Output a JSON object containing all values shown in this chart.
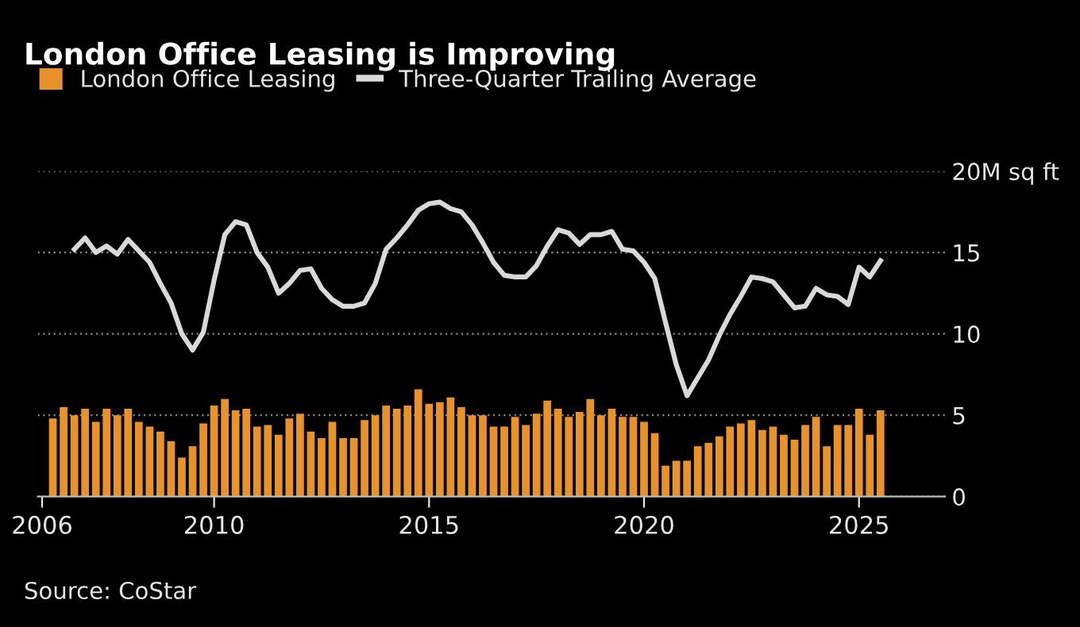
{
  "chart_data": {
    "type": "bar",
    "title": "London Office Leasing is Improving",
    "x": [
      2006.25,
      2006.5,
      2006.75,
      2007,
      2007.25,
      2007.5,
      2007.75,
      2008,
      2008.25,
      2008.5,
      2008.75,
      2009,
      2009.25,
      2009.5,
      2009.75,
      2010,
      2010.25,
      2010.5,
      2010.75,
      2011,
      2011.25,
      2011.5,
      2011.75,
      2012,
      2012.25,
      2012.5,
      2012.75,
      2013,
      2013.25,
      2013.5,
      2013.75,
      2014,
      2014.25,
      2014.5,
      2014.75,
      2015,
      2015.25,
      2015.5,
      2015.75,
      2016,
      2016.25,
      2016.5,
      2016.75,
      2017,
      2017.25,
      2017.5,
      2017.75,
      2018,
      2018.25,
      2018.5,
      2018.75,
      2019,
      2019.25,
      2019.5,
      2019.75,
      2020,
      2020.25,
      2020.5,
      2020.75,
      2021,
      2021.25,
      2021.5,
      2021.75,
      2022,
      2022.25,
      2022.5,
      2022.75,
      2023,
      2023.25,
      2023.5,
      2023.75,
      2024,
      2024.25,
      2024.5,
      2024.75,
      2025,
      2025.25,
      2025.5
    ],
    "series": [
      {
        "name": "London Office Leasing",
        "color": "#e8922a",
        "values": [
          4.8,
          5.5,
          5.0,
          5.4,
          4.6,
          5.4,
          5.0,
          5.4,
          4.6,
          4.3,
          4.0,
          3.4,
          2.4,
          3.1,
          4.5,
          5.6,
          6.0,
          5.3,
          5.4,
          4.3,
          4.4,
          3.8,
          4.8,
          5.1,
          4.0,
          3.6,
          4.6,
          3.6,
          3.6,
          4.7,
          5.0,
          5.6,
          5.4,
          5.6,
          6.6,
          5.7,
          5.8,
          6.1,
          5.5,
          5.0,
          5.0,
          4.3,
          4.3,
          4.9,
          4.4,
          5.1,
          5.9,
          5.4,
          4.9,
          5.2,
          6.0,
          5.0,
          5.4,
          4.9,
          4.9,
          4.6,
          3.9,
          1.9,
          2.2,
          2.2,
          3.1,
          3.3,
          3.7,
          4.3,
          4.5,
          4.7,
          4.1,
          4.3,
          3.8,
          3.5,
          4.4,
          4.9,
          3.1,
          4.4,
          4.4,
          5.4,
          3.8,
          5.3
        ]
      },
      {
        "name": "Three-Quarter Trailing Average",
        "type": "line",
        "color": "#d9d9d9",
        "x": [
          2006.75,
          2007,
          2007.25,
          2007.5,
          2007.75,
          2008,
          2008.25,
          2008.5,
          2008.75,
          2009,
          2009.25,
          2009.5,
          2009.75,
          2010,
          2010.25,
          2010.5,
          2010.75,
          2011,
          2011.25,
          2011.5,
          2011.75,
          2012,
          2012.25,
          2012.5,
          2012.75,
          2013,
          2013.25,
          2013.5,
          2013.75,
          2014,
          2014.25,
          2014.5,
          2014.75,
          2015,
          2015.25,
          2015.5,
          2015.75,
          2016,
          2016.25,
          2016.5,
          2016.75,
          2017,
          2017.25,
          2017.5,
          2017.75,
          2018,
          2018.25,
          2018.5,
          2018.75,
          2019,
          2019.25,
          2019.5,
          2019.75,
          2020,
          2020.25,
          2020.5,
          2020.75,
          2021,
          2021.25,
          2021.5,
          2021.75,
          2022,
          2022.25,
          2022.5,
          2022.75,
          2023,
          2023.25,
          2023.5,
          2023.75,
          2024,
          2024.25,
          2024.5,
          2024.75,
          2025,
          2025.25,
          2025.5
        ],
        "values": [
          15.2,
          15.9,
          15.0,
          15.4,
          14.9,
          15.8,
          15.1,
          14.4,
          13.1,
          11.9,
          10.0,
          9.0,
          10.1,
          13.3,
          16.1,
          16.9,
          16.7,
          15.0,
          14.1,
          12.5,
          13.1,
          13.9,
          14.0,
          12.8,
          12.1,
          11.7,
          11.7,
          11.9,
          13.1,
          15.2,
          15.9,
          16.7,
          17.6,
          18.0,
          18.1,
          17.7,
          17.5,
          16.7,
          15.6,
          14.4,
          13.6,
          13.5,
          13.5,
          14.2,
          15.4,
          16.4,
          16.2,
          15.5,
          16.1,
          16.1,
          16.3,
          15.2,
          15.1,
          14.4,
          13.4,
          10.7,
          8.1,
          6.2,
          7.3,
          8.4,
          9.9,
          11.2,
          12.3,
          13.5,
          13.4,
          13.2,
          12.4,
          11.6,
          11.7,
          12.8,
          12.4,
          12.3,
          11.8,
          14.1,
          13.5,
          14.5
        ]
      }
    ],
    "xlim": [
      2005.9,
      2027
    ],
    "xticks": [
      2006,
      2010,
      2015,
      2020,
      2025
    ],
    "ylim": [
      0,
      20
    ],
    "yticks": [
      0,
      5,
      10,
      15,
      {
        "value": 20,
        "label": "20M sq ft"
      }
    ],
    "grid": "y",
    "legend": "top left",
    "annotations": [
      "Source: CoStar"
    ]
  }
}
